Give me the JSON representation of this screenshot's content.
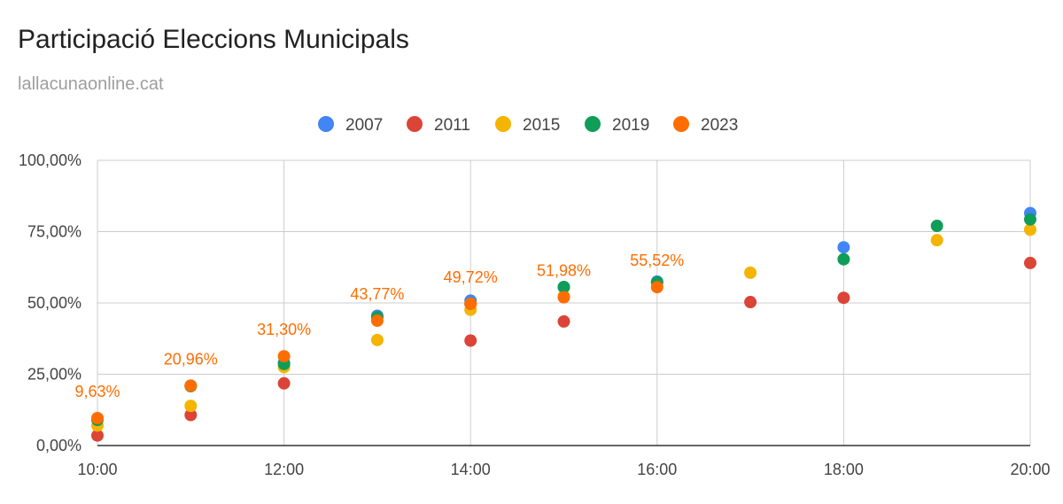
{
  "header": {
    "title": "Participació Eleccions Municipals",
    "subtitle": "lallacunaonline.cat"
  },
  "chart_data": {
    "type": "scatter",
    "title": "Participació Eleccions Municipals",
    "subtitle": "lallacunaonline.cat",
    "xlabel": "",
    "ylabel": "",
    "x_ticks": [
      "10:00",
      "12:00",
      "14:00",
      "16:00",
      "18:00",
      "20:00"
    ],
    "xlim": [
      10,
      20
    ],
    "y_ticks": [
      "0,00%",
      "25,00%",
      "50,00%",
      "75,00%",
      "100,00%"
    ],
    "ylim": [
      0,
      100
    ],
    "grid": true,
    "legend_position": "top",
    "series": [
      {
        "name": "2007",
        "color": "#4285f4",
        "x": [
          10,
          11,
          12,
          13,
          14,
          15,
          16,
          18,
          20
        ],
        "y": [
          9.5,
          21.0,
          29.0,
          45.5,
          50.8,
          55.5,
          57.5,
          69.5,
          81.5
        ]
      },
      {
        "name": "2011",
        "color": "#db4437",
        "x": [
          10,
          11,
          12,
          14,
          15,
          17,
          18,
          20
        ],
        "y": [
          3.5,
          10.7,
          21.8,
          36.8,
          43.5,
          50.3,
          51.8,
          64.0
        ]
      },
      {
        "name": "2015",
        "color": "#f4b400",
        "x": [
          10,
          11,
          12,
          13,
          14,
          15,
          17,
          19,
          20
        ],
        "y": [
          7.0,
          13.9,
          27.5,
          37.0,
          47.6,
          52.4,
          60.6,
          72.0,
          75.7
        ]
      },
      {
        "name": "2019",
        "color": "#0f9d58",
        "x": [
          10,
          11,
          12,
          13,
          14,
          15,
          16,
          18,
          19,
          20
        ],
        "y": [
          9.0,
          20.8,
          28.6,
          45.0,
          49.7,
          55.6,
          57.2,
          65.3,
          77.0,
          79.3
        ]
      },
      {
        "name": "2023",
        "color": "#ff6d01",
        "x": [
          10,
          11,
          12,
          13,
          14,
          15,
          16
        ],
        "y": [
          9.63,
          20.96,
          31.3,
          43.77,
          49.72,
          51.98,
          55.52
        ],
        "data_labels": [
          "9,63%",
          "20,96%",
          "31,30%",
          "43,77%",
          "49,72%",
          "51,98%",
          "55,52%"
        ]
      }
    ]
  }
}
